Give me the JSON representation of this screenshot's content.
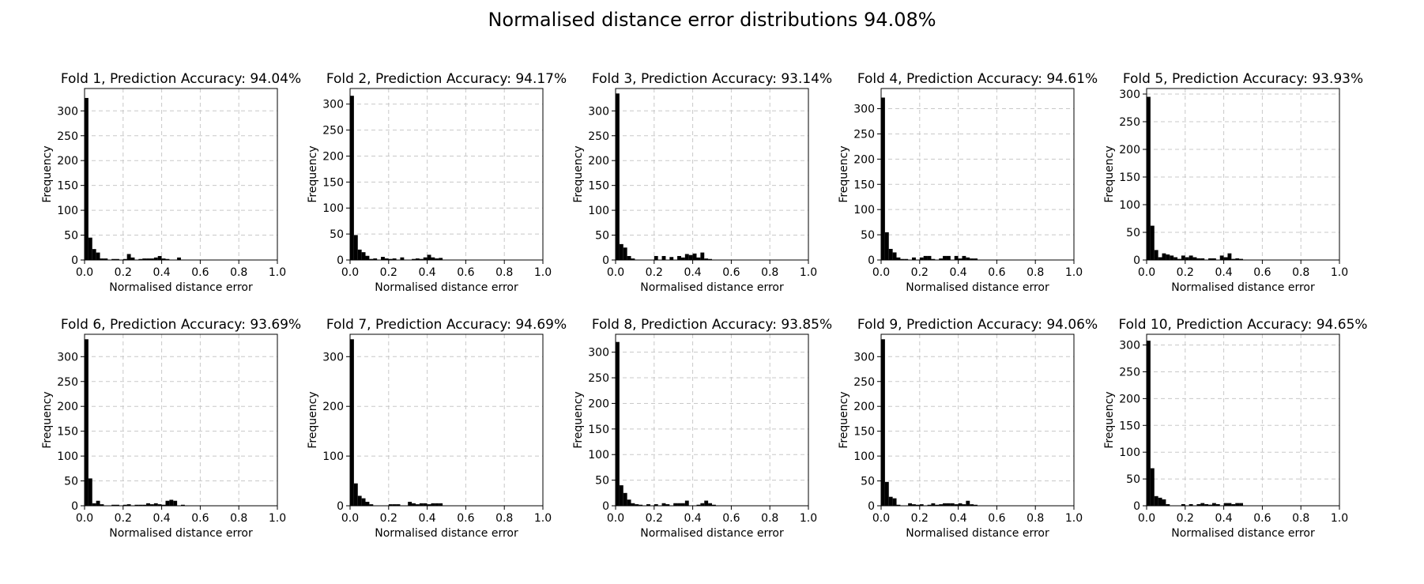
{
  "figure_title": "Normalised distance error distributions 94.08%",
  "chart_data": [
    {
      "type": "bar",
      "title": "Fold 1, Prediction Accuracy: 94.04%",
      "xlabel": "Normalised distance error",
      "ylabel": "Frequency",
      "xlim": [
        0,
        1
      ],
      "ylim": [
        0,
        345
      ],
      "xticks": [
        "0.0",
        "0.2",
        "0.4",
        "0.6",
        "0.8",
        "1.0"
      ],
      "yticks": [
        0,
        50,
        100,
        150,
        200,
        250,
        300
      ],
      "bin_width": 0.02,
      "grid": true,
      "values": [
        326,
        45,
        22,
        15,
        3,
        3,
        0,
        2,
        2,
        0,
        2,
        12,
        5,
        0,
        2,
        3,
        3,
        3,
        5,
        8,
        3,
        2,
        0,
        0,
        5,
        0,
        0,
        0,
        0,
        0,
        0,
        0,
        0,
        0,
        0,
        0,
        0,
        0,
        0,
        0,
        0,
        0,
        0,
        0,
        0,
        0,
        0,
        0,
        0,
        0
      ]
    },
    {
      "type": "bar",
      "title": "Fold 2, Prediction Accuracy: 94.17%",
      "xlabel": "Normalised distance error",
      "ylabel": "Frequency",
      "xlim": [
        0,
        1
      ],
      "ylim": [
        0,
        330
      ],
      "xticks": [
        "0.0",
        "0.2",
        "0.4",
        "0.6",
        "0.8",
        "1.0"
      ],
      "yticks": [
        0,
        50,
        100,
        150,
        200,
        250,
        300
      ],
      "bin_width": 0.02,
      "grid": true,
      "values": [
        316,
        48,
        20,
        15,
        8,
        2,
        3,
        0,
        6,
        3,
        2,
        3,
        0,
        5,
        0,
        0,
        2,
        3,
        2,
        5,
        10,
        5,
        3,
        4,
        0,
        0,
        0,
        0,
        0,
        0,
        0,
        0,
        0,
        0,
        0,
        0,
        0,
        0,
        0,
        0,
        0,
        0,
        0,
        0,
        0,
        0,
        0,
        0,
        0,
        0
      ]
    },
    {
      "type": "bar",
      "title": "Fold 3, Prediction Accuracy: 93.14%",
      "xlabel": "Normalised distance error",
      "ylabel": "Frequency",
      "xlim": [
        0,
        1
      ],
      "ylim": [
        0,
        345
      ],
      "xticks": [
        "0.0",
        "0.2",
        "0.4",
        "0.6",
        "0.8",
        "1.0"
      ],
      "yticks": [
        0,
        50,
        100,
        150,
        200,
        250,
        300
      ],
      "bin_width": 0.02,
      "grid": true,
      "values": [
        335,
        32,
        25,
        8,
        3,
        0,
        0,
        0,
        0,
        0,
        8,
        0,
        8,
        0,
        6,
        0,
        8,
        5,
        12,
        10,
        13,
        5,
        15,
        3,
        2,
        0,
        0,
        0,
        0,
        0,
        0,
        0,
        0,
        0,
        0,
        0,
        0,
        0,
        0,
        0,
        0,
        0,
        0,
        0,
        0,
        0,
        0,
        0,
        0,
        0
      ]
    },
    {
      "type": "bar",
      "title": "Fold 4, Prediction Accuracy: 94.61%",
      "xlabel": "Normalised distance error",
      "ylabel": "Frequency",
      "xlim": [
        0,
        1
      ],
      "ylim": [
        0,
        340
      ],
      "xticks": [
        "0.0",
        "0.2",
        "0.4",
        "0.6",
        "0.8",
        "1.0"
      ],
      "yticks": [
        0,
        50,
        100,
        150,
        200,
        250,
        300
      ],
      "bin_width": 0.02,
      "grid": true,
      "values": [
        322,
        55,
        22,
        15,
        5,
        2,
        2,
        0,
        5,
        0,
        5,
        8,
        8,
        2,
        0,
        3,
        8,
        8,
        0,
        8,
        3,
        8,
        5,
        3,
        3,
        0,
        0,
        0,
        0,
        0,
        0,
        0,
        0,
        0,
        0,
        0,
        0,
        0,
        0,
        0,
        0,
        0,
        0,
        0,
        0,
        0,
        0,
        0,
        0,
        0
      ]
    },
    {
      "type": "bar",
      "title": "Fold 5, Prediction Accuracy: 93.93%",
      "xlabel": "Normalised distance error",
      "ylabel": "Frequency",
      "xlim": [
        0,
        1
      ],
      "ylim": [
        0,
        310
      ],
      "xticks": [
        "0.0",
        "0.2",
        "0.4",
        "0.6",
        "0.8",
        "1.0"
      ],
      "yticks": [
        0,
        50,
        100,
        150,
        200,
        250,
        300
      ],
      "bin_width": 0.02,
      "grid": true,
      "values": [
        295,
        62,
        18,
        5,
        12,
        10,
        8,
        5,
        2,
        8,
        5,
        8,
        5,
        3,
        3,
        0,
        3,
        3,
        0,
        8,
        5,
        12,
        2,
        3,
        2,
        0,
        0,
        0,
        0,
        0,
        0,
        0,
        0,
        0,
        0,
        0,
        0,
        0,
        0,
        0,
        0,
        0,
        0,
        0,
        0,
        0,
        0,
        0,
        0,
        0
      ]
    },
    {
      "type": "bar",
      "title": "Fold 6, Prediction Accuracy: 93.69%",
      "xlabel": "Normalised distance error",
      "ylabel": "Frequency",
      "xlim": [
        0,
        1
      ],
      "ylim": [
        0,
        345
      ],
      "xticks": [
        "0.0",
        "0.2",
        "0.4",
        "0.6",
        "0.8",
        "1.0"
      ],
      "yticks": [
        0,
        50,
        100,
        150,
        200,
        250,
        300
      ],
      "bin_width": 0.02,
      "grid": true,
      "values": [
        335,
        55,
        5,
        10,
        3,
        0,
        0,
        2,
        2,
        0,
        2,
        3,
        0,
        2,
        2,
        2,
        5,
        3,
        5,
        3,
        2,
        10,
        12,
        10,
        0,
        2,
        0,
        0,
        0,
        0,
        0,
        0,
        0,
        0,
        0,
        0,
        0,
        0,
        0,
        0,
        0,
        0,
        0,
        0,
        0,
        0,
        0,
        0,
        0,
        0
      ]
    },
    {
      "type": "bar",
      "title": "Fold 7, Prediction Accuracy: 94.69%",
      "xlabel": "Normalised distance error",
      "ylabel": "Frequency",
      "xlim": [
        0,
        1
      ],
      "ylim": [
        0,
        345
      ],
      "xticks": [
        "0.0",
        "0.2",
        "0.4",
        "0.6",
        "0.8",
        "1.0"
      ],
      "yticks": [
        0,
        100,
        200,
        300
      ],
      "bin_width": 0.02,
      "grid": true,
      "values": [
        335,
        45,
        20,
        15,
        8,
        3,
        0,
        0,
        0,
        0,
        3,
        3,
        3,
        0,
        0,
        8,
        5,
        3,
        5,
        5,
        3,
        5,
        5,
        5,
        0,
        0,
        0,
        0,
        0,
        0,
        0,
        0,
        0,
        0,
        0,
        0,
        0,
        0,
        0,
        0,
        0,
        0,
        0,
        0,
        0,
        0,
        0,
        0,
        0,
        0
      ]
    },
    {
      "type": "bar",
      "title": "Fold 8, Prediction Accuracy: 93.85%",
      "xlabel": "Normalised distance error",
      "ylabel": "Frequency",
      "xlim": [
        0,
        1
      ],
      "ylim": [
        0,
        335
      ],
      "xticks": [
        "0.0",
        "0.2",
        "0.4",
        "0.6",
        "0.8",
        "1.0"
      ],
      "yticks": [
        0,
        50,
        100,
        150,
        200,
        250,
        300
      ],
      "bin_width": 0.02,
      "grid": true,
      "values": [
        320,
        40,
        25,
        12,
        5,
        3,
        2,
        0,
        3,
        0,
        3,
        0,
        5,
        3,
        0,
        5,
        5,
        5,
        10,
        0,
        0,
        2,
        5,
        10,
        5,
        2,
        0,
        0,
        0,
        0,
        0,
        0,
        0,
        0,
        0,
        0,
        0,
        0,
        0,
        0,
        0,
        0,
        0,
        0,
        0,
        0,
        0,
        0,
        0,
        0
      ]
    },
    {
      "type": "bar",
      "title": "Fold 9, Prediction Accuracy: 94.06%",
      "xlabel": "Normalised distance error",
      "ylabel": "Frequency",
      "xlim": [
        0,
        1
      ],
      "ylim": [
        0,
        345
      ],
      "xticks": [
        "0.0",
        "0.2",
        "0.4",
        "0.6",
        "0.8",
        "1.0"
      ],
      "yticks": [
        0,
        50,
        100,
        150,
        200,
        250,
        300
      ],
      "bin_width": 0.02,
      "grid": true,
      "values": [
        335,
        48,
        18,
        15,
        2,
        0,
        0,
        5,
        3,
        2,
        3,
        0,
        2,
        5,
        2,
        3,
        5,
        5,
        5,
        3,
        5,
        3,
        10,
        3,
        2,
        0,
        0,
        0,
        0,
        0,
        0,
        0,
        0,
        0,
        0,
        0,
        0,
        0,
        0,
        0,
        0,
        0,
        0,
        0,
        0,
        0,
        0,
        0,
        0,
        0
      ]
    },
    {
      "type": "bar",
      "title": "Fold 10, Prediction Accuracy: 94.65%",
      "xlabel": "Normalised distance error",
      "ylabel": "Frequency",
      "xlim": [
        0,
        1
      ],
      "ylim": [
        0,
        320
      ],
      "xticks": [
        "0.0",
        "0.2",
        "0.4",
        "0.6",
        "0.8",
        "1.0"
      ],
      "yticks": [
        0,
        50,
        100,
        150,
        200,
        250,
        300
      ],
      "bin_width": 0.02,
      "grid": true,
      "values": [
        308,
        70,
        18,
        15,
        12,
        3,
        0,
        0,
        0,
        3,
        0,
        3,
        0,
        3,
        5,
        3,
        2,
        5,
        3,
        0,
        5,
        5,
        3,
        5,
        5,
        0,
        0,
        0,
        0,
        0,
        0,
        0,
        0,
        0,
        0,
        0,
        0,
        0,
        0,
        0,
        0,
        0,
        0,
        0,
        0,
        0,
        0,
        0,
        0,
        0
      ]
    }
  ]
}
